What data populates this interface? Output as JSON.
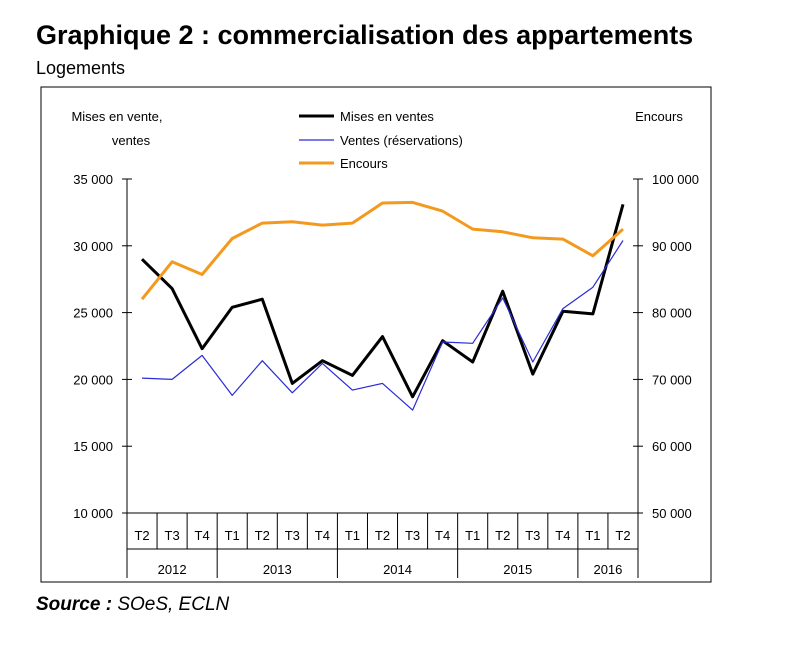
{
  "title": "Graphique 2 : commercialisation des appartements",
  "subtitle": "Logements",
  "source": {
    "label": "Source :",
    "text": "SOeS, ECLN"
  },
  "chart_data": {
    "type": "line",
    "left_axis_label": [
      "Mises en vente,",
      "ventes"
    ],
    "right_axis_label": "Encours",
    "left_ylim": [
      10000,
      35000
    ],
    "right_ylim": [
      50000,
      100000
    ],
    "left_ticks": [
      10000,
      15000,
      20000,
      25000,
      30000,
      35000
    ],
    "left_tick_labels": [
      "10 000",
      "15 000",
      "20 000",
      "25 000",
      "30 000",
      "35 000"
    ],
    "right_ticks": [
      50000,
      60000,
      70000,
      80000,
      90000,
      100000
    ],
    "right_tick_labels": [
      "50 000",
      "60 000",
      "70 000",
      "80 000",
      "90 000",
      "100 000"
    ],
    "categories": [
      "T2",
      "T3",
      "T4",
      "T1",
      "T2",
      "T3",
      "T4",
      "T1",
      "T2",
      "T3",
      "T4",
      "T1",
      "T2",
      "T3",
      "T4",
      "T1",
      "T2"
    ],
    "years": [
      {
        "label": "2012",
        "start": 0,
        "end": 2
      },
      {
        "label": "2013",
        "start": 3,
        "end": 6
      },
      {
        "label": "2014",
        "start": 7,
        "end": 10
      },
      {
        "label": "2015",
        "start": 11,
        "end": 14
      },
      {
        "label": "2016",
        "start": 15,
        "end": 16
      }
    ],
    "series": [
      {
        "name": "Mises en ventes",
        "axis": "left",
        "color": "#000000",
        "width": 3,
        "values": [
          29000,
          26800,
          22300,
          25400,
          26000,
          19700,
          21400,
          20300,
          23200,
          18700,
          22900,
          21300,
          26600,
          20400,
          25100,
          24900,
          33100
        ]
      },
      {
        "name": "Ventes (réservations)",
        "axis": "left",
        "color": "#2b2bd6",
        "width": 1.2,
        "values": [
          20100,
          20000,
          21800,
          18800,
          21400,
          19000,
          21200,
          19200,
          19700,
          17700,
          22800,
          22700,
          26100,
          21300,
          25300,
          26900,
          30400
        ]
      },
      {
        "name": "Encours",
        "axis": "right",
        "color": "#f39a1e",
        "width": 3,
        "values": [
          82000,
          87600,
          85700,
          91100,
          93400,
          93600,
          93100,
          93400,
          96400,
          96500,
          95200,
          92500,
          92100,
          91200,
          91000,
          88500,
          92500
        ]
      }
    ]
  }
}
